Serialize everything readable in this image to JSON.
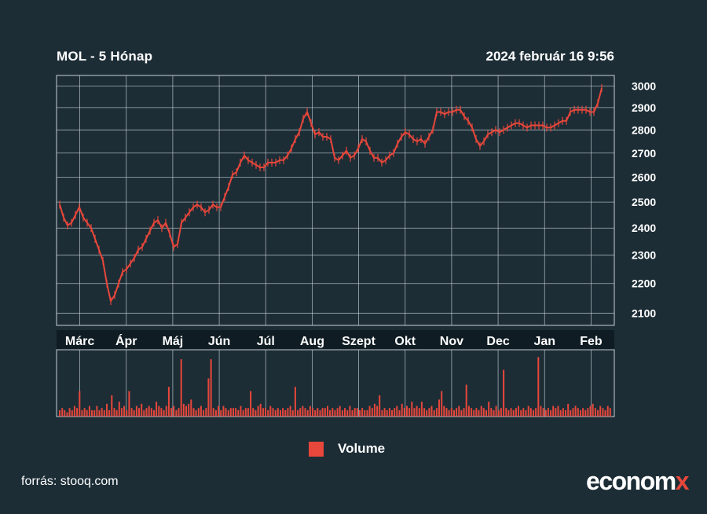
{
  "header": {
    "title": "MOL - 5 Hónap",
    "timestamp": "2024 február 16 9:56"
  },
  "legend": {
    "volume_label": "Volume"
  },
  "footer": {
    "source": "forrás: stooq.com",
    "logo_main": "econom",
    "logo_x": "x"
  },
  "colors": {
    "background": "#1c2d36",
    "series": "#e8473b",
    "grid": "#c8cfd4",
    "axis_band": "#0f1c23",
    "text": "#ffffff"
  },
  "chart_data": [
    {
      "type": "line",
      "title": "MOL - 5 Hónap",
      "subtitle": "2024 február 16 9:56",
      "y_ticks": [
        2100,
        2200,
        2300,
        2400,
        2500,
        2600,
        2700,
        2800,
        2900,
        3000
      ],
      "ylim": [
        2060,
        3050
      ],
      "y_scale": "log",
      "x_tick_labels": [
        "Márc",
        "Ápr",
        "Máj",
        "Jún",
        "Júl",
        "Aug",
        "Szept",
        "Okt",
        "Nov",
        "Dec",
        "Jan",
        "Feb"
      ],
      "grid": true,
      "series": [
        {
          "values": [
            2490,
            2440,
            2410,
            2420,
            2450,
            2480,
            2440,
            2420,
            2400,
            2360,
            2320,
            2280,
            2200,
            2140,
            2160,
            2200,
            2240,
            2250,
            2270,
            2290,
            2320,
            2330,
            2360,
            2390,
            2420,
            2430,
            2400,
            2420,
            2380,
            2330,
            2340,
            2420,
            2440,
            2460,
            2480,
            2490,
            2480,
            2460,
            2470,
            2490,
            2480,
            2480,
            2520,
            2560,
            2610,
            2620,
            2660,
            2690,
            2670,
            2660,
            2650,
            2640,
            2640,
            2660,
            2660,
            2660,
            2670,
            2670,
            2690,
            2720,
            2760,
            2790,
            2850,
            2880,
            2830,
            2780,
            2790,
            2770,
            2770,
            2760,
            2680,
            2670,
            2690,
            2710,
            2680,
            2690,
            2720,
            2760,
            2750,
            2710,
            2680,
            2680,
            2660,
            2670,
            2690,
            2700,
            2740,
            2770,
            2790,
            2780,
            2760,
            2750,
            2760,
            2740,
            2770,
            2800,
            2880,
            2880,
            2870,
            2880,
            2880,
            2890,
            2890,
            2860,
            2840,
            2810,
            2760,
            2730,
            2750,
            2780,
            2790,
            2800,
            2790,
            2800,
            2810,
            2820,
            2830,
            2830,
            2820,
            2810,
            2820,
            2820,
            2820,
            2820,
            2810,
            2810,
            2820,
            2830,
            2840,
            2840,
            2880,
            2890,
            2890,
            2890,
            2890,
            2880,
            2880,
            2920,
            2990
          ]
        }
      ]
    },
    {
      "type": "bar",
      "series": [
        {
          "name": "Volume",
          "values": [
            3,
            4,
            3,
            2,
            4,
            3,
            5,
            4,
            12,
            3,
            4,
            3,
            5,
            3,
            3,
            5,
            3,
            4,
            3,
            6,
            3,
            10,
            4,
            3,
            7,
            4,
            5,
            3,
            12,
            4,
            3,
            5,
            4,
            6,
            3,
            4,
            5,
            4,
            3,
            7,
            5,
            4,
            3,
            5,
            14,
            4,
            5,
            3,
            4,
            27,
            6,
            5,
            6,
            8,
            4,
            3,
            4,
            5,
            3,
            4,
            18,
            27,
            4,
            3,
            5,
            3,
            5,
            4,
            3,
            4,
            4,
            4,
            3,
            5,
            3,
            4,
            4,
            12,
            4,
            3,
            5,
            6,
            4,
            4,
            3,
            5,
            4,
            3,
            4,
            3,
            4,
            3,
            4,
            5,
            3,
            14,
            3,
            4,
            5,
            4,
            3,
            5,
            4,
            3,
            4,
            3,
            4,
            4,
            5,
            3,
            4,
            3,
            4,
            5,
            3,
            4,
            3,
            5,
            3,
            4,
            4,
            3,
            4,
            3,
            3,
            5,
            4,
            6,
            5,
            10,
            3,
            4,
            3,
            4,
            3,
            4,
            5,
            3,
            6,
            4,
            5,
            4,
            7,
            4,
            5,
            4,
            7,
            4,
            3,
            4,
            5,
            3,
            4,
            8,
            12,
            5,
            4,
            3,
            4,
            3,
            4,
            5,
            3,
            4,
            15,
            5,
            4,
            3,
            4,
            3,
            5,
            4,
            3,
            7,
            4,
            3,
            5,
            3,
            4,
            22,
            4,
            3,
            4,
            3,
            4,
            5,
            3,
            4,
            3,
            5,
            4,
            3,
            4,
            28,
            5,
            4,
            3,
            4,
            3,
            5,
            4,
            5,
            3,
            4,
            3,
            6,
            3,
            4,
            5,
            4,
            3,
            4,
            3,
            4,
            5,
            6,
            4,
            3,
            5,
            4,
            3,
            5,
            4
          ]
        }
      ]
    }
  ]
}
